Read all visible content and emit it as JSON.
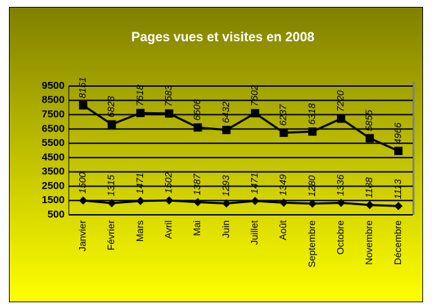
{
  "chart_data": {
    "type": "line",
    "title": "Pages vues et visites en 2008",
    "categories": [
      "Janvier",
      "Février",
      "Mars",
      "Avril",
      "Mai",
      "Juin",
      "Juillet",
      "Août",
      "Septembre",
      "Octobre",
      "Novembre",
      "Décembre"
    ],
    "series": [
      {
        "color": "#000000",
        "marker": "square",
        "values": [
          8151,
          6823,
          7618,
          7583,
          6606,
          6432,
          7602,
          6237,
          6318,
          7220,
          5855,
          4966
        ]
      },
      {
        "color": "#000000",
        "marker": "diamond",
        "values": [
          1500,
          1315,
          1471,
          1502,
          1387,
          1293,
          1471,
          1349,
          1280,
          1336,
          1188,
          1113
        ]
      }
    ],
    "ylim": [
      500,
      9500
    ],
    "yticks": [
      500,
      1500,
      2500,
      3500,
      4500,
      5500,
      6500,
      7500,
      8500,
      9500
    ],
    "grid": true
  }
}
